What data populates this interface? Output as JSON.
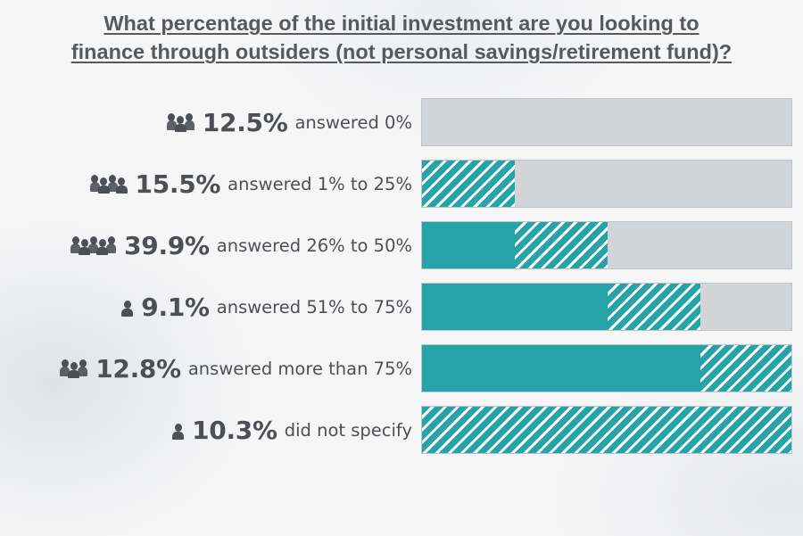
{
  "title_line1": "What percentage of the initial investment are you looking to",
  "title_line2": "finance through outsiders (not personal savings/retirement fund)?",
  "colors": {
    "solid": "#26a3a8",
    "track": "#d1d4d8",
    "text": "#4c5055"
  },
  "chart_data": {
    "type": "bar",
    "stacked": "cumulative",
    "title": "What percentage of the initial investment are you looking to finance through outsiders (not personal savings/retirement fund)?",
    "categories": [
      "answered 0%",
      "answered 1% to 25%",
      "answered 26% to 50%",
      "answered 51% to 75%",
      "answered more than 75%",
      "did not specify"
    ],
    "values": [
      12.5,
      15.5,
      39.9,
      9.1,
      12.8,
      10.3
    ],
    "rows": [
      {
        "percent": "12.5%",
        "text": "answered 0%",
        "icon": "group-3-people-icon",
        "people": 3,
        "solid_fraction": 0,
        "hatch_fraction": 0
      },
      {
        "percent": "15.5%",
        "text": "answered 1% to 25%",
        "icon": "group-4-people-icon",
        "people": 4,
        "solid_fraction": 0,
        "hatch_fraction": 0.25
      },
      {
        "percent": "39.9%",
        "text": "answered 26% to 50%",
        "icon": "group-5-people-icon",
        "people": 5,
        "solid_fraction": 0.25,
        "hatch_fraction": 0.25
      },
      {
        "percent": "9.1%",
        "text": "answered 51% to 75%",
        "icon": "person-icon",
        "people": 1,
        "solid_fraction": 0.5,
        "hatch_fraction": 0.25
      },
      {
        "percent": "12.8%",
        "text": "answered more than 75%",
        "icon": "group-3-people-icon",
        "people": 3,
        "solid_fraction": 0.75,
        "hatch_fraction": 0.25
      },
      {
        "percent": "10.3%",
        "text": "did not specify",
        "icon": "person-icon",
        "people": 1,
        "solid_fraction": 0,
        "hatch_fraction": 1
      }
    ],
    "xlim": [
      0,
      100
    ],
    "grid": false,
    "legend": "none"
  }
}
